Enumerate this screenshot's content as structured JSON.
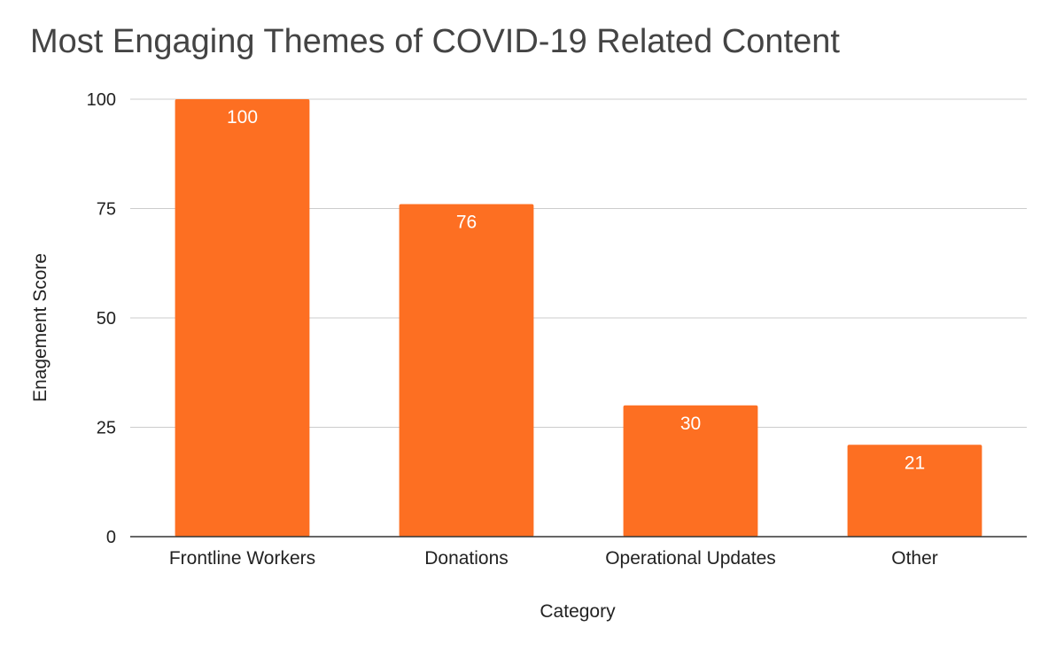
{
  "chart_data": {
    "type": "bar",
    "title": "Most Engaging Themes of COVID-19 Related Content",
    "xlabel": "Category",
    "ylabel": "Enagement Score",
    "categories": [
      "Frontline Workers",
      "Donations",
      "Operational Updates",
      "Other"
    ],
    "values": [
      100,
      76,
      30,
      21
    ],
    "data_labels": [
      "100",
      "76",
      "30",
      "21"
    ],
    "ylim": [
      0,
      100
    ],
    "yticks": [
      0,
      25,
      50,
      75,
      100
    ],
    "ytick_labels": [
      "0",
      "25",
      "50",
      "75",
      "100"
    ],
    "grid": true,
    "legend": "none",
    "bar_color": "#fd6f22"
  }
}
